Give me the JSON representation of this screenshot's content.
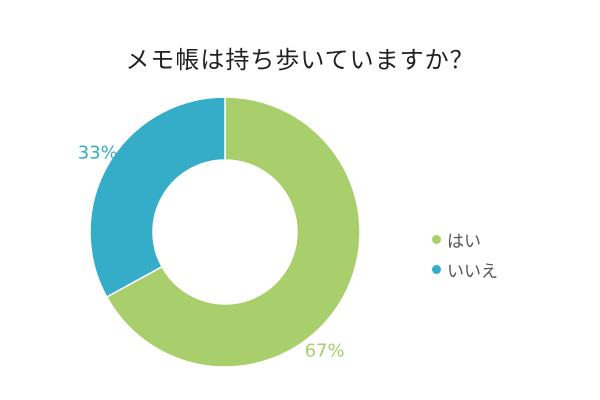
{
  "chart_data": {
    "type": "pie",
    "title": "メモ帳は持ち歩いていますか？",
    "legend_position": "right",
    "donut": true,
    "slices": [
      {
        "label": "はい",
        "value": 67,
        "value_label": "67%",
        "color": "#a8cf6b"
      },
      {
        "label": "いいえ",
        "value": 33,
        "value_label": "33%",
        "color": "#35adc9"
      }
    ]
  }
}
